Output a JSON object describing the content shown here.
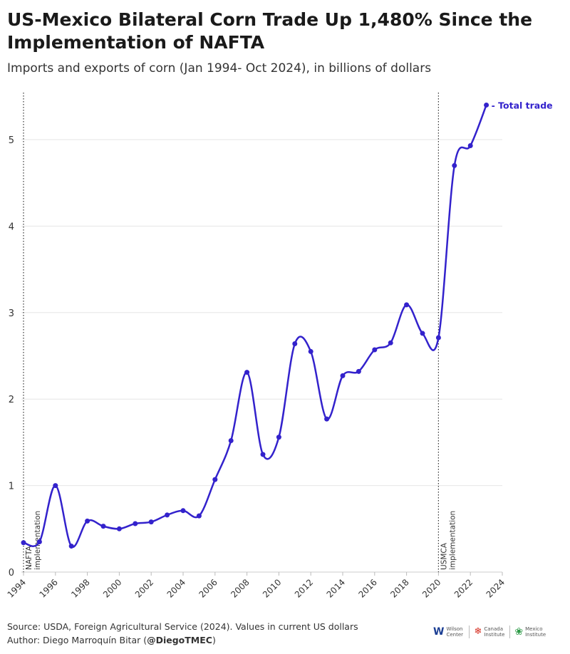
{
  "title": "US-Mexico Bilateral Corn Trade Up 1,480% Since the Implementation of NAFTA",
  "subtitle": "Imports and exports of corn (Jan 1994- Oct 2024), in billions of dollars",
  "source": "Source: USDA, Foreign Agricultural Service (2024). Values in current US dollars",
  "author_prefix": "Author: Diego Marroquín Bitar (",
  "author_handle": "@DiegoTMEC",
  "author_suffix": ")",
  "logos": [
    "Wilson Center",
    "Canada Institute",
    "Mexico Institute"
  ],
  "colors": {
    "series": "#3322cc",
    "grid": "#e6e6e6",
    "text": "#222222"
  },
  "chart_data": {
    "type": "line",
    "title": "US-Mexico Bilateral Corn Trade Up 1,480% Since the Implementation of NAFTA",
    "subtitle": "Imports and exports of corn (Jan 1994- Oct 2024), in billions of dollars",
    "xlim": [
      1994,
      2024
    ],
    "ylim": [
      0,
      5.5
    ],
    "xticks": [
      1994,
      1996,
      1998,
      2000,
      2002,
      2004,
      2006,
      2008,
      2010,
      2012,
      2014,
      2016,
      2018,
      2020,
      2022,
      2024
    ],
    "yticks": [
      0,
      1,
      2,
      3,
      4,
      5
    ],
    "grid": "horizontal",
    "series": [
      {
        "name": "Total trade",
        "x": [
          1994,
          1995,
          1996,
          1997,
          1998,
          1999,
          2000,
          2001,
          2002,
          2003,
          2004,
          2005,
          2006,
          2007,
          2008,
          2009,
          2010,
          2011,
          2012,
          2013,
          2014,
          2015,
          2016,
          2017,
          2018,
          2019,
          2020,
          2021,
          2022,
          2023
        ],
        "y": [
          0.34,
          0.35,
          1.0,
          0.3,
          0.59,
          0.53,
          0.5,
          0.56,
          0.58,
          0.66,
          0.71,
          0.65,
          1.07,
          1.52,
          2.31,
          1.36,
          1.56,
          2.64,
          2.55,
          1.77,
          2.27,
          2.32,
          2.57,
          2.65,
          3.09,
          2.76,
          2.71,
          4.7,
          4.93,
          5.4
        ]
      }
    ],
    "annotations": [
      {
        "x": 1994,
        "label": "NAFTA implementation"
      },
      {
        "x": 2020,
        "label": "USMCA implementation"
      }
    ]
  }
}
